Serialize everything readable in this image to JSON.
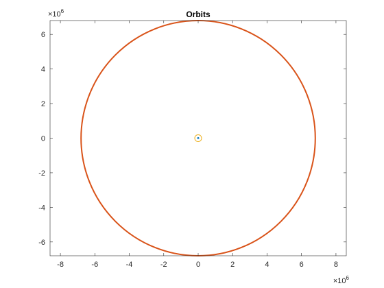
{
  "chart_data": {
    "type": "line",
    "title": "Orbits",
    "xlim": [
      -8600000,
      8600000
    ],
    "ylim": [
      -6800000,
      6800000
    ],
    "x_ticks": [
      -8000000,
      -6000000,
      -4000000,
      -2000000,
      0,
      2000000,
      4000000,
      6000000,
      8000000
    ],
    "y_ticks": [
      -6000000,
      -4000000,
      -2000000,
      0,
      2000000,
      4000000,
      6000000
    ],
    "x_tick_labels": [
      "-8",
      "-6",
      "-4",
      "-2",
      "0",
      "2",
      "4",
      "6",
      "8"
    ],
    "y_tick_labels": [
      "-6",
      "-4",
      "-2",
      "0",
      "2",
      "4",
      "6"
    ],
    "x_exponent": {
      "base": "×10",
      "power": "6"
    },
    "y_exponent": {
      "base": "×10",
      "power": "6"
    },
    "grid": false,
    "series": [
      {
        "shape": "circle",
        "center": [
          0,
          0
        ],
        "radius": 6800000,
        "color": "#D95319"
      },
      {
        "shape": "circle",
        "center": [
          0,
          0
        ],
        "radius": 200000,
        "color": "#EDB120"
      },
      {
        "shape": "circle",
        "center": [
          0,
          0
        ],
        "radius": 30000,
        "color": "#0072BD"
      }
    ]
  }
}
